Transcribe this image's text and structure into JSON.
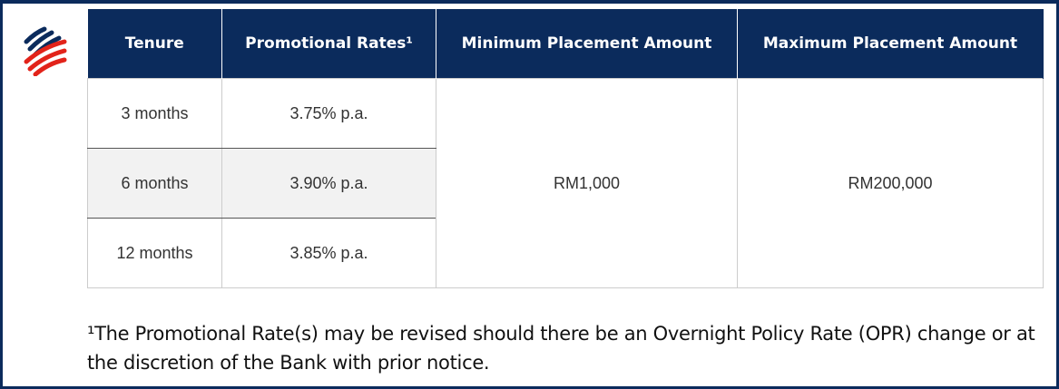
{
  "logo": {
    "name": "bank-logo",
    "colors": {
      "navy": "#0b2b5c",
      "red": "#e2231a"
    }
  },
  "table": {
    "headers": [
      "Tenure",
      "Promotional Rates¹",
      "Minimum Placement Amount",
      "Maximum Placement Amount"
    ],
    "rows": [
      {
        "tenure": "3 months",
        "rate": "3.75% p.a."
      },
      {
        "tenure": "6 months",
        "rate": "3.90% p.a."
      },
      {
        "tenure": "12 months",
        "rate": "3.85% p.a."
      }
    ],
    "min_amount": "RM1,000",
    "max_amount": "RM200,000"
  },
  "footnote": "¹The Promotional Rate(s) may be revised should there be an Overnight Policy Rate (OPR) change or at the discretion of the Bank with prior notice.",
  "colors": {
    "header_bg": "#0b2b5c",
    "frame": "#0b2b5c",
    "alt_row": "#f2f2f2"
  }
}
